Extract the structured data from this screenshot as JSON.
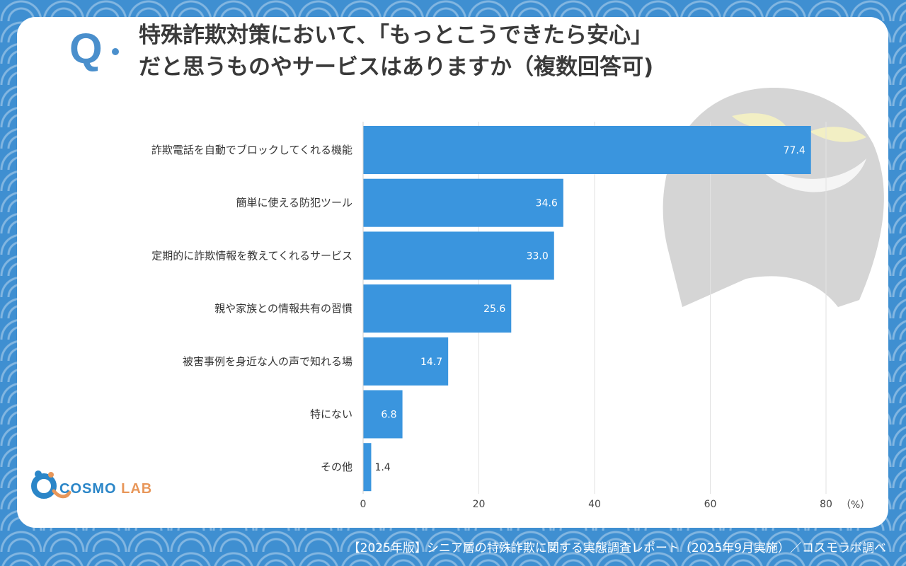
{
  "question": {
    "mark": "Q",
    "line1": "特殊詐欺対策において、「もっとこうできたら安心」",
    "line2": "だと思うものやサービスはありますか（複数回答可)"
  },
  "chart_data": {
    "type": "bar",
    "orientation": "horizontal",
    "title": "特殊詐欺対策において、「もっとこうできたら安心」だと思うものやサービスはありますか（複数回答可)",
    "categories": [
      "詐欺電話を自動でブロックしてくれる機能",
      "簡単に使える防犯ツール",
      "定期的に詐欺情報を教えてくれるサービス",
      "親や家族との情報共有の習慣",
      "被害事例を身近な人の声で知れる場",
      "特にない",
      "その他"
    ],
    "values": [
      77.4,
      34.6,
      33.0,
      25.6,
      14.7,
      6.8,
      1.4
    ],
    "value_labels": [
      "77.4",
      "34.6",
      "33.0",
      "25.6",
      "14.7",
      "6.8",
      "1.4"
    ],
    "xlim": [
      0,
      80
    ],
    "xticks": [
      "0",
      "20",
      "40",
      "60",
      "80"
    ],
    "xunit": "（%）",
    "grid": true,
    "bar_color": "#3a95de"
  },
  "logo": {
    "part1": "COSMO",
    "part2": "LAB"
  },
  "footer": "【2025年版】シニア層の特殊詐欺に関する実態調査レポート（2025年9月実施）／コスモラボ調べ",
  "colors": {
    "bar": "#3a95de",
    "accent": "#4a8fcc",
    "logo_orange": "#e8975a"
  }
}
